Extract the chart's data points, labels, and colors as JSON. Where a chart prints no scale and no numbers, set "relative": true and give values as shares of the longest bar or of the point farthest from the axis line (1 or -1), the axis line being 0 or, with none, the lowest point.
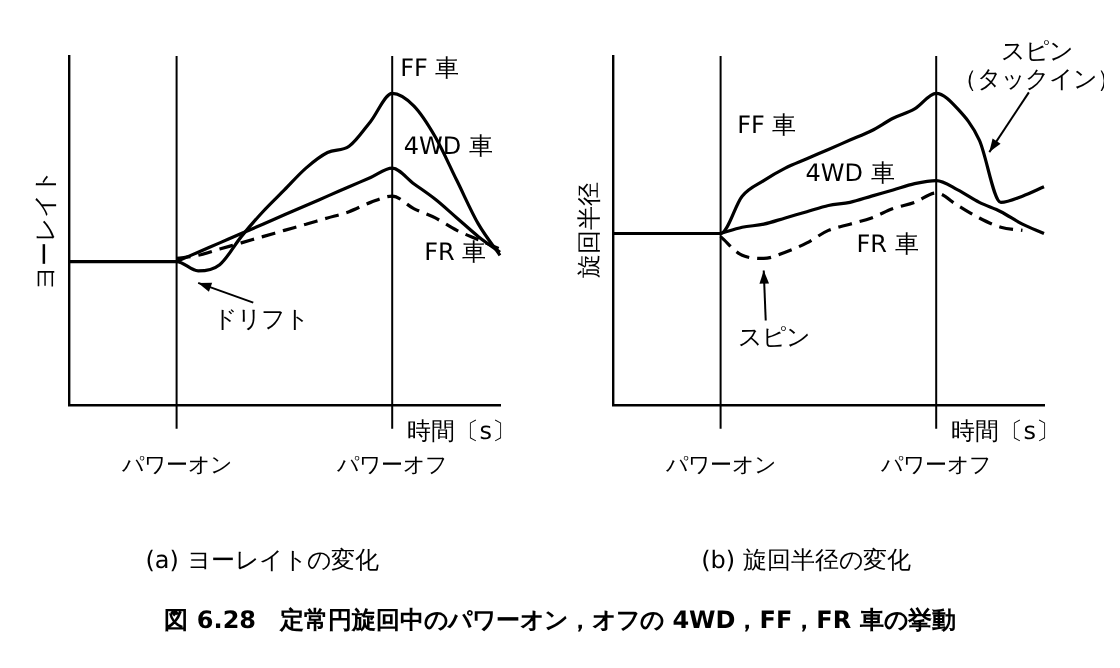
{
  "chart_data": [
    {
      "type": "line",
      "title": "(a) ヨーレイトの変化",
      "xlabel": "時間〔s〕",
      "ylabel": "ヨーレイト",
      "relative": true,
      "legend": false,
      "categories": [
        null,
        null,
        null,
        null,
        null,
        "パワーオン",
        null,
        null,
        null,
        null,
        null,
        null,
        null,
        null,
        null,
        "パワーオフ",
        null,
        null,
        null,
        null,
        null
      ],
      "series": [
        {
          "name": "FF 車",
          "color": "#000000",
          "line_style": "solid",
          "values": [
            0.46,
            0.46,
            0.46,
            0.46,
            0.46,
            0.46,
            0.43,
            0.45,
            0.54,
            0.62,
            0.69,
            0.76,
            0.81,
            0.83,
            0.91,
            1,
            0.96,
            0.86,
            0.72,
            0.58,
            0.48
          ]
        },
        {
          "name": "4WD 車",
          "color": "#000000",
          "line_style": "solid",
          "values": [
            null,
            null,
            null,
            null,
            null,
            0.46,
            0.49,
            0.52,
            0.55,
            0.58,
            0.61,
            0.64,
            0.67,
            0.7,
            0.73,
            0.76,
            0.71,
            0.66,
            0.6,
            0.54,
            0.49
          ]
        },
        {
          "name": "FR 車",
          "color": "#000000",
          "line_style": "dashed",
          "values": [
            null,
            null,
            null,
            null,
            null,
            0.47,
            0.48,
            0.5,
            0.52,
            0.54,
            0.56,
            0.58,
            0.6,
            0.62,
            0.65,
            0.67,
            0.63,
            0.6,
            0.56,
            0.53,
            0.5
          ]
        }
      ],
      "ref_lines": [
        {
          "axis": "x",
          "value": "パワーオン",
          "color": "#000000"
        },
        {
          "axis": "x",
          "value": "パワーオフ",
          "color": "#000000"
        }
      ],
      "annotations": [
        "ドリフト",
        "図 6.28　定常円旋回中のパワーオン，オフの 4WD，FF，FR 車の挙動"
      ]
    },
    {
      "type": "line",
      "title": "(b) 旋回半径の変化",
      "xlabel": "時間〔s〕",
      "ylabel": "旋回半径",
      "relative": true,
      "legend": false,
      "categories": [
        null,
        null,
        null,
        null,
        null,
        "パワーオン",
        null,
        null,
        null,
        null,
        null,
        null,
        null,
        null,
        null,
        "パワーオフ",
        null,
        null,
        null,
        null,
        null
      ],
      "series": [
        {
          "name": "FF 車",
          "color": "#000000",
          "line_style": "solid",
          "values": [
            0.55,
            0.55,
            0.55,
            0.55,
            0.55,
            0.55,
            0.67,
            0.72,
            0.76,
            0.79,
            0.82,
            0.85,
            0.88,
            0.92,
            0.95,
            1,
            0.95,
            0.85,
            0.65,
            0.67,
            0.7
          ]
        },
        {
          "name": "4WD 車",
          "color": "#000000",
          "line_style": "solid",
          "values": [
            null,
            null,
            null,
            null,
            null,
            0.55,
            0.57,
            0.58,
            0.6,
            0.62,
            0.64,
            0.65,
            0.67,
            0.69,
            0.71,
            0.72,
            0.69,
            0.65,
            0.62,
            0.58,
            0.55
          ]
        },
        {
          "name": "FR 車",
          "color": "#000000",
          "line_style": "dashed",
          "values": [
            null,
            null,
            null,
            null,
            null,
            0.54,
            0.48,
            0.47,
            0.49,
            0.52,
            0.56,
            0.58,
            0.6,
            0.63,
            0.65,
            0.68,
            0.64,
            0.6,
            0.57,
            0.56,
            null
          ]
        }
      ],
      "ref_lines": [
        {
          "axis": "x",
          "value": "パワーオン",
          "color": "#000000"
        },
        {
          "axis": "x",
          "value": "パワーオフ",
          "color": "#000000"
        }
      ],
      "annotations": [
        "スピン",
        "スピン（タックイン）"
      ]
    }
  ]
}
